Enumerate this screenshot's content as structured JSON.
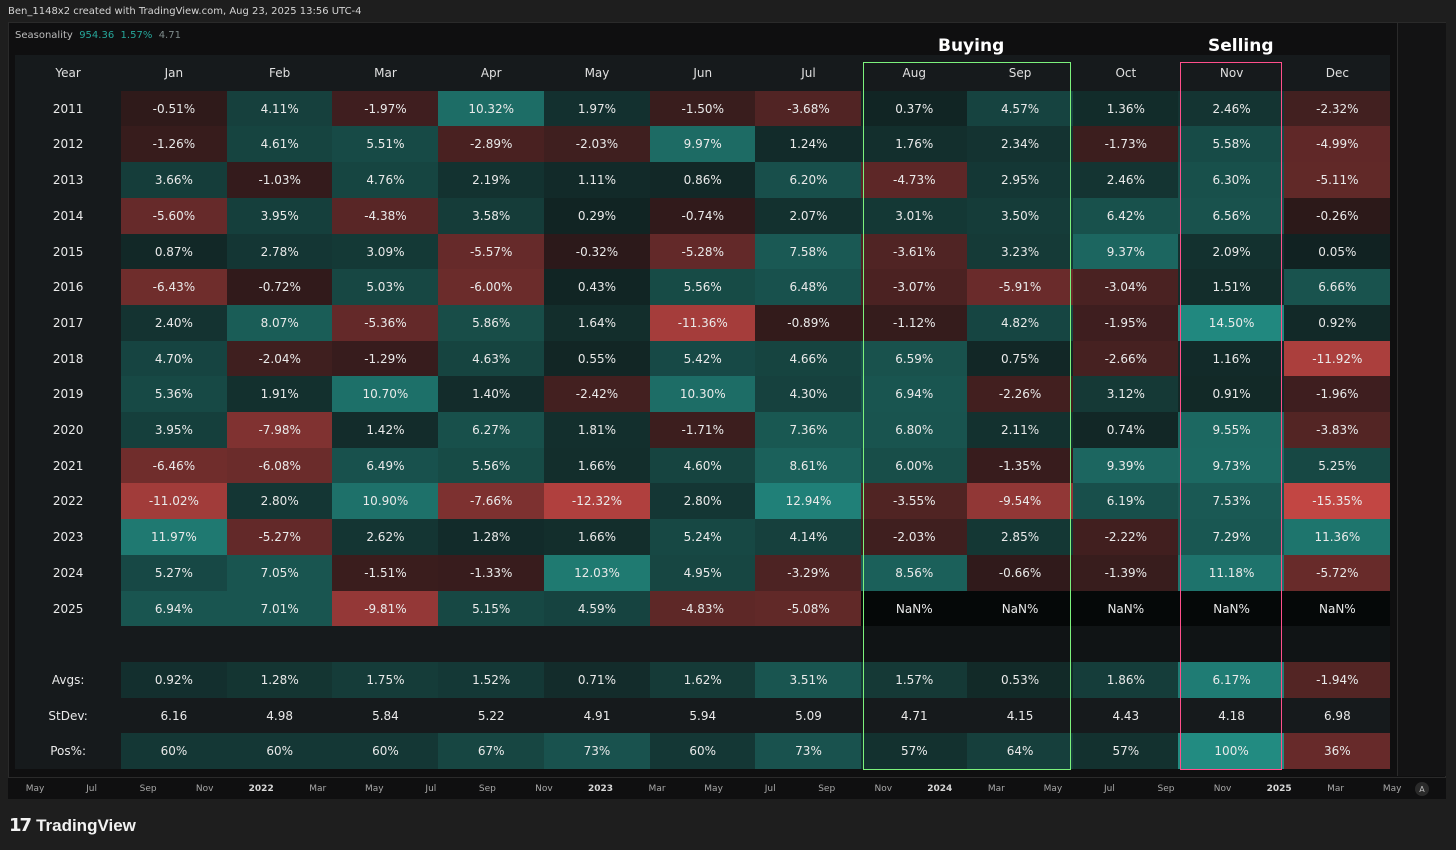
{
  "credit": "Ben_1148x2 created with TradingView.com, Aug 23, 2025 13:56 UTC-4",
  "series": {
    "name": "Seasonality",
    "v1": "954.36",
    "v2": "1.57%",
    "v3": "4.71"
  },
  "annotations": {
    "buying": "Buying",
    "selling": "Selling"
  },
  "brand": {
    "mark": "17",
    "name": "TradingView"
  },
  "auto_button": "A",
  "time_axis": [
    {
      "t": "May",
      "b": false
    },
    {
      "t": "Jul",
      "b": false
    },
    {
      "t": "Sep",
      "b": false
    },
    {
      "t": "Nov",
      "b": false
    },
    {
      "t": "2022",
      "b": true
    },
    {
      "t": "Mar",
      "b": false
    },
    {
      "t": "May",
      "b": false
    },
    {
      "t": "Jul",
      "b": false
    },
    {
      "t": "Sep",
      "b": false
    },
    {
      "t": "Nov",
      "b": false
    },
    {
      "t": "2023",
      "b": true
    },
    {
      "t": "Mar",
      "b": false
    },
    {
      "t": "May",
      "b": false
    },
    {
      "t": "Jul",
      "b": false
    },
    {
      "t": "Sep",
      "b": false
    },
    {
      "t": "Nov",
      "b": false
    },
    {
      "t": "2024",
      "b": true
    },
    {
      "t": "Mar",
      "b": false
    },
    {
      "t": "May",
      "b": false
    },
    {
      "t": "Jul",
      "b": false
    },
    {
      "t": "Sep",
      "b": false
    },
    {
      "t": "Nov",
      "b": false
    },
    {
      "t": "2025",
      "b": true
    },
    {
      "t": "Mar",
      "b": false
    },
    {
      "t": "May",
      "b": false
    }
  ],
  "colors": {
    "pos": "#26a69a",
    "neg": "#ef5350",
    "buy_box": "#7cf27c",
    "sell_box": "#ff4f8b"
  },
  "chart_data": {
    "type": "table",
    "title": "Seasonality",
    "columns": [
      "Year",
      "Jan",
      "Feb",
      "Mar",
      "Apr",
      "May",
      "Jun",
      "Jul",
      "Aug",
      "Sep",
      "Oct",
      "Nov",
      "Dec"
    ],
    "rows": [
      {
        "year": "2011",
        "values": [
          "-0.51%",
          "4.11%",
          "-1.97%",
          "10.32%",
          "1.97%",
          "-1.50%",
          "-3.68%",
          "0.37%",
          "4.57%",
          "1.36%",
          "2.46%",
          "-2.32%"
        ]
      },
      {
        "year": "2012",
        "values": [
          "-1.26%",
          "4.61%",
          "5.51%",
          "-2.89%",
          "-2.03%",
          "9.97%",
          "1.24%",
          "1.76%",
          "2.34%",
          "-1.73%",
          "5.58%",
          "-4.99%"
        ]
      },
      {
        "year": "2013",
        "values": [
          "3.66%",
          "-1.03%",
          "4.76%",
          "2.19%",
          "1.11%",
          "0.86%",
          "6.20%",
          "-4.73%",
          "2.95%",
          "2.46%",
          "6.30%",
          "-5.11%"
        ]
      },
      {
        "year": "2014",
        "values": [
          "-5.60%",
          "3.95%",
          "-4.38%",
          "3.58%",
          "0.29%",
          "-0.74%",
          "2.07%",
          "3.01%",
          "3.50%",
          "6.42%",
          "6.56%",
          "-0.26%"
        ]
      },
      {
        "year": "2015",
        "values": [
          "0.87%",
          "2.78%",
          "3.09%",
          "-5.57%",
          "-0.32%",
          "-5.28%",
          "7.58%",
          "-3.61%",
          "3.23%",
          "9.37%",
          "2.09%",
          "0.05%"
        ]
      },
      {
        "year": "2016",
        "values": [
          "-6.43%",
          "-0.72%",
          "5.03%",
          "-6.00%",
          "0.43%",
          "5.56%",
          "6.48%",
          "-3.07%",
          "-5.91%",
          "-3.04%",
          "1.51%",
          "6.66%"
        ]
      },
      {
        "year": "2017",
        "values": [
          "2.40%",
          "8.07%",
          "-5.36%",
          "5.86%",
          "1.64%",
          "-11.36%",
          "-0.89%",
          "-1.12%",
          "4.82%",
          "-1.95%",
          "14.50%",
          "0.92%"
        ]
      },
      {
        "year": "2018",
        "values": [
          "4.70%",
          "-2.04%",
          "-1.29%",
          "4.63%",
          "0.55%",
          "5.42%",
          "4.66%",
          "6.59%",
          "0.75%",
          "-2.66%",
          "1.16%",
          "-11.92%"
        ]
      },
      {
        "year": "2019",
        "values": [
          "5.36%",
          "1.91%",
          "10.70%",
          "1.40%",
          "-2.42%",
          "10.30%",
          "4.30%",
          "6.94%",
          "-2.26%",
          "3.12%",
          "0.91%",
          "-1.96%"
        ]
      },
      {
        "year": "2020",
        "values": [
          "3.95%",
          "-7.98%",
          "1.42%",
          "6.27%",
          "1.81%",
          "-1.71%",
          "7.36%",
          "6.80%",
          "2.11%",
          "0.74%",
          "9.55%",
          "-3.83%"
        ]
      },
      {
        "year": "2021",
        "values": [
          "-6.46%",
          "-6.08%",
          "6.49%",
          "5.56%",
          "1.66%",
          "4.60%",
          "8.61%",
          "6.00%",
          "-1.35%",
          "9.39%",
          "9.73%",
          "5.25%"
        ]
      },
      {
        "year": "2022",
        "values": [
          "-11.02%",
          "2.80%",
          "10.90%",
          "-7.66%",
          "-12.32%",
          "2.80%",
          "12.94%",
          "-3.55%",
          "-9.54%",
          "6.19%",
          "7.53%",
          "-15.35%"
        ]
      },
      {
        "year": "2023",
        "values": [
          "11.97%",
          "-5.27%",
          "2.62%",
          "1.28%",
          "1.66%",
          "5.24%",
          "4.14%",
          "-2.03%",
          "2.85%",
          "-2.22%",
          "7.29%",
          "11.36%"
        ]
      },
      {
        "year": "2024",
        "values": [
          "5.27%",
          "7.05%",
          "-1.51%",
          "-1.33%",
          "12.03%",
          "4.95%",
          "-3.29%",
          "8.56%",
          "-0.66%",
          "-1.39%",
          "11.18%",
          "-5.72%"
        ]
      },
      {
        "year": "2025",
        "values": [
          "6.94%",
          "7.01%",
          "-9.81%",
          "5.15%",
          "4.59%",
          "-4.83%",
          "-5.08%",
          "NaN%",
          "NaN%",
          "NaN%",
          "NaN%",
          "NaN%"
        ]
      }
    ],
    "summary": [
      {
        "label": "Avgs:",
        "values": [
          "0.92%",
          "1.28%",
          "1.75%",
          "1.52%",
          "0.71%",
          "1.62%",
          "3.51%",
          "1.57%",
          "0.53%",
          "1.86%",
          "6.17%",
          "-1.94%"
        ]
      },
      {
        "label": "StDev:",
        "values": [
          "6.16",
          "4.98",
          "5.84",
          "5.22",
          "4.91",
          "5.94",
          "5.09",
          "4.71",
          "4.15",
          "4.43",
          "4.18",
          "6.98"
        ]
      },
      {
        "label": "Pos%:",
        "values": [
          "60%",
          "60%",
          "60%",
          "67%",
          "73%",
          "60%",
          "73%",
          "57%",
          "64%",
          "57%",
          "100%",
          "36%"
        ]
      }
    ],
    "highlight": {
      "buying": [
        "Aug",
        "Sep"
      ],
      "selling": [
        "Nov"
      ]
    }
  }
}
